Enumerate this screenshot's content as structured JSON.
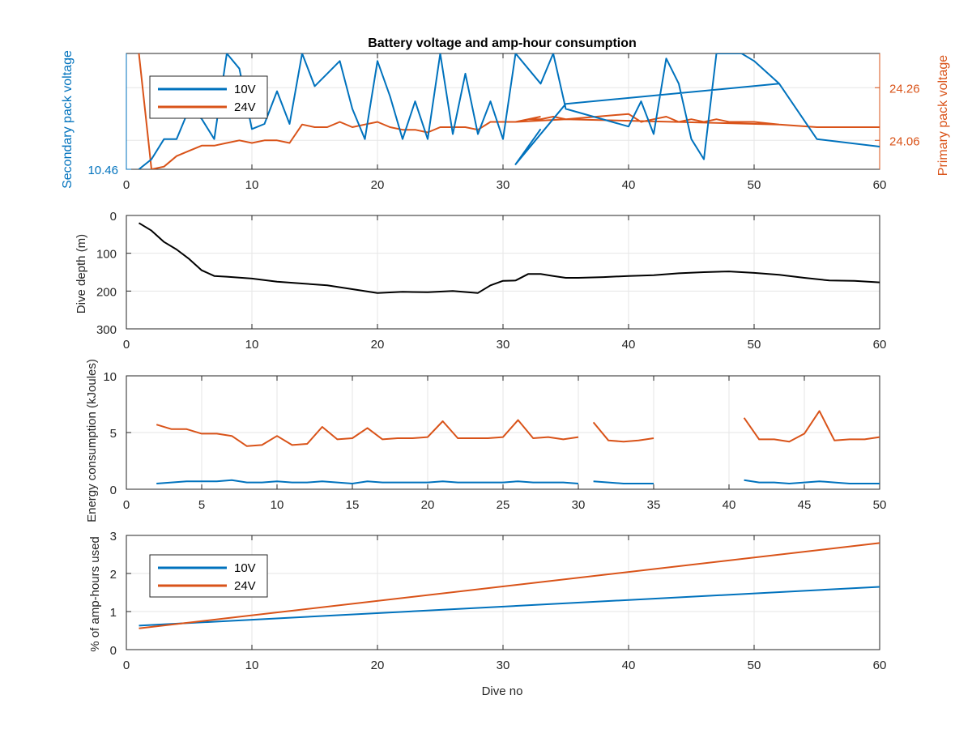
{
  "figure": {
    "title": "Battery voltage and amp-hour consumption"
  },
  "colors": {
    "blue": "#0072bd",
    "orange": "#d95319",
    "black": "#000000",
    "grid": "#e6e6e6",
    "axis": "#262626"
  },
  "chart_data": [
    {
      "type": "line",
      "title": "Battery voltage and amp-hour consumption",
      "xlabel": "",
      "ylabel_left": "Secondary pack voltage",
      "ylabel_right": "Primary pack voltage",
      "xlim": [
        0,
        60
      ],
      "xticks": [
        0,
        10,
        20,
        30,
        40,
        50,
        60
      ],
      "left_ticks": [
        {
          "value": 10.46,
          "label": "10.46"
        }
      ],
      "right_ticks": [
        {
          "value": 24.26,
          "label": "24.26"
        },
        {
          "value": 24.06,
          "label": "24.06"
        }
      ],
      "grid": true,
      "legend": {
        "position": "top-left",
        "entries": [
          "10V",
          "24V"
        ]
      },
      "series": [
        {
          "name": "10V",
          "axis": "left",
          "color": "#0072bd",
          "ylim": [
            10.46,
            10.92
          ],
          "x": [
            1,
            2,
            3,
            4,
            5,
            6,
            7,
            8,
            9,
            10,
            11,
            12,
            13,
            14,
            15,
            16,
            17,
            18,
            19,
            20,
            21,
            22,
            23,
            24,
            25,
            26,
            27,
            28,
            29,
            30,
            31,
            32,
            33,
            34,
            35,
            40,
            41,
            42,
            43,
            44,
            45,
            46,
            47,
            48,
            49,
            50,
            52,
            55,
            60,
            55,
            52,
            35,
            31,
            33
          ],
          "y": [
            10.46,
            10.5,
            10.58,
            10.58,
            10.7,
            10.66,
            10.58,
            10.92,
            10.86,
            10.62,
            10.64,
            10.77,
            10.64,
            10.92,
            10.79,
            10.84,
            10.89,
            10.7,
            10.58,
            10.89,
            10.75,
            10.58,
            10.73,
            10.58,
            10.92,
            10.6,
            10.84,
            10.6,
            10.73,
            10.58,
            10.92,
            10.86,
            10.8,
            10.92,
            10.7,
            10.63,
            10.73,
            10.6,
            10.9,
            10.8,
            10.58,
            10.5,
            10.92,
            10.92,
            10.92,
            10.89,
            10.8,
            10.58,
            10.55,
            10.58,
            10.8,
            10.72,
            10.48,
            10.62
          ]
        },
        {
          "name": "24V",
          "axis": "right",
          "color": "#d95319",
          "ylim": [
            23.95,
            24.39
          ],
          "x": [
            1,
            2,
            3,
            4,
            5,
            6,
            7,
            8,
            9,
            10,
            11,
            12,
            13,
            14,
            15,
            16,
            17,
            18,
            19,
            20,
            21,
            22,
            23,
            24,
            25,
            26,
            27,
            28,
            29,
            30,
            31,
            32,
            33,
            34,
            35,
            40,
            41,
            42,
            43,
            44,
            45,
            46,
            47,
            48,
            49,
            50,
            52,
            55,
            60,
            55,
            52,
            35,
            31,
            33
          ],
          "y": [
            24.39,
            23.95,
            23.96,
            24.0,
            24.02,
            24.04,
            24.04,
            24.05,
            24.06,
            24.05,
            24.06,
            24.06,
            24.05,
            24.12,
            24.11,
            24.11,
            24.13,
            24.11,
            24.12,
            24.13,
            24.11,
            24.1,
            24.1,
            24.09,
            24.11,
            24.11,
            24.11,
            24.1,
            24.13,
            24.13,
            24.13,
            24.14,
            24.14,
            24.15,
            24.14,
            24.16,
            24.13,
            24.14,
            24.15,
            24.13,
            24.14,
            24.13,
            24.14,
            24.13,
            24.13,
            24.13,
            24.12,
            24.11,
            24.11,
            24.11,
            24.12,
            24.14,
            24.13,
            24.15
          ]
        }
      ]
    },
    {
      "type": "line",
      "ylabel": "Dive depth (m)",
      "xlim": [
        0,
        60
      ],
      "ylim": [
        0,
        300
      ],
      "y_reversed": true,
      "xticks": [
        0,
        10,
        20,
        30,
        40,
        50,
        60
      ],
      "yticks": [
        0,
        100,
        200,
        300
      ],
      "grid": true,
      "series": [
        {
          "color": "#000000",
          "x": [
            1,
            2,
            3,
            4,
            5,
            6,
            7,
            8,
            10,
            12,
            14,
            16,
            18,
            20,
            22,
            24,
            26,
            28,
            29,
            30,
            31,
            32,
            33,
            34,
            35,
            36,
            38,
            40,
            42,
            44,
            46,
            48,
            50,
            52,
            54,
            56,
            58,
            60
          ],
          "y": [
            20,
            40,
            70,
            90,
            115,
            145,
            160,
            162,
            167,
            175,
            180,
            185,
            195,
            205,
            202,
            203,
            200,
            205,
            185,
            173,
            172,
            155,
            155,
            160,
            165,
            165,
            163,
            160,
            158,
            153,
            150,
            148,
            152,
            157,
            165,
            172,
            173,
            177
          ]
        }
      ]
    },
    {
      "type": "line",
      "ylabel": "Energy consumption (kJoules)",
      "xlim": [
        0,
        50
      ],
      "ylim": [
        0,
        10
      ],
      "xticks": [
        0,
        5,
        10,
        15,
        20,
        25,
        30,
        35,
        40,
        45,
        50
      ],
      "yticks": [
        0,
        5,
        10
      ],
      "grid": true,
      "series": [
        {
          "color": "#d95319",
          "segments": [
            {
              "x": [
                2,
                3,
                4,
                5,
                6,
                7,
                8,
                9,
                10,
                11,
                12,
                13,
                14,
                15,
                16,
                17,
                18,
                19,
                20,
                21,
                22,
                23,
                24,
                25,
                26,
                27,
                28,
                29,
                30
              ],
              "y": [
                5.7,
                5.3,
                5.3,
                4.9,
                4.9,
                4.7,
                3.8,
                3.9,
                4.7,
                3.9,
                4.0,
                5.5,
                4.4,
                4.5,
                5.4,
                4.4,
                4.5,
                4.5,
                4.6,
                6.0,
                4.5,
                4.5,
                4.5,
                4.6,
                6.1,
                4.5,
                4.6,
                4.4,
                4.6
              ]
            },
            {
              "x": [
                31,
                32,
                33,
                34,
                35
              ],
              "y": [
                5.9,
                4.3,
                4.2,
                4.3,
                4.5
              ]
            },
            {
              "x": [
                41,
                42,
                43,
                44,
                45,
                46,
                47,
                48,
                49,
                50
              ],
              "y": [
                6.3,
                4.4,
                4.4,
                4.2,
                4.9,
                6.9,
                4.3,
                4.4,
                4.4,
                4.6
              ]
            }
          ]
        },
        {
          "color": "#0072bd",
          "segments": [
            {
              "x": [
                2,
                3,
                4,
                5,
                6,
                7,
                8,
                9,
                10,
                11,
                12,
                13,
                14,
                15,
                16,
                17,
                18,
                19,
                20,
                21,
                22,
                23,
                24,
                25,
                26,
                27,
                28,
                29,
                30
              ],
              "y": [
                0.5,
                0.6,
                0.7,
                0.7,
                0.7,
                0.8,
                0.6,
                0.6,
                0.7,
                0.6,
                0.6,
                0.7,
                0.6,
                0.5,
                0.7,
                0.6,
                0.6,
                0.6,
                0.6,
                0.7,
                0.6,
                0.6,
                0.6,
                0.6,
                0.7,
                0.6,
                0.6,
                0.6,
                0.5
              ]
            },
            {
              "x": [
                31,
                32,
                33,
                34,
                35
              ],
              "y": [
                0.7,
                0.6,
                0.5,
                0.5,
                0.5
              ]
            },
            {
              "x": [
                41,
                42,
                43,
                44,
                45,
                46,
                47,
                48,
                49,
                50
              ],
              "y": [
                0.8,
                0.6,
                0.6,
                0.5,
                0.6,
                0.7,
                0.6,
                0.5,
                0.5,
                0.5
              ]
            }
          ]
        }
      ]
    },
    {
      "type": "line",
      "xlabel": "Dive no",
      "ylabel": "% of amp-hours used",
      "xlim": [
        0,
        60
      ],
      "ylim": [
        0,
        3
      ],
      "xticks": [
        0,
        10,
        20,
        30,
        40,
        50,
        60
      ],
      "yticks": [
        0,
        1,
        2,
        3
      ],
      "grid": true,
      "legend": {
        "position": "bottom-left",
        "entries": [
          "10V",
          "24V"
        ]
      },
      "series": [
        {
          "name": "10V",
          "color": "#0072bd",
          "x": [
            1,
            60
          ],
          "y": [
            0.63,
            1.65
          ]
        },
        {
          "name": "24V",
          "color": "#d95319",
          "x": [
            1,
            60
          ],
          "y": [
            0.56,
            2.8
          ]
        }
      ]
    }
  ]
}
